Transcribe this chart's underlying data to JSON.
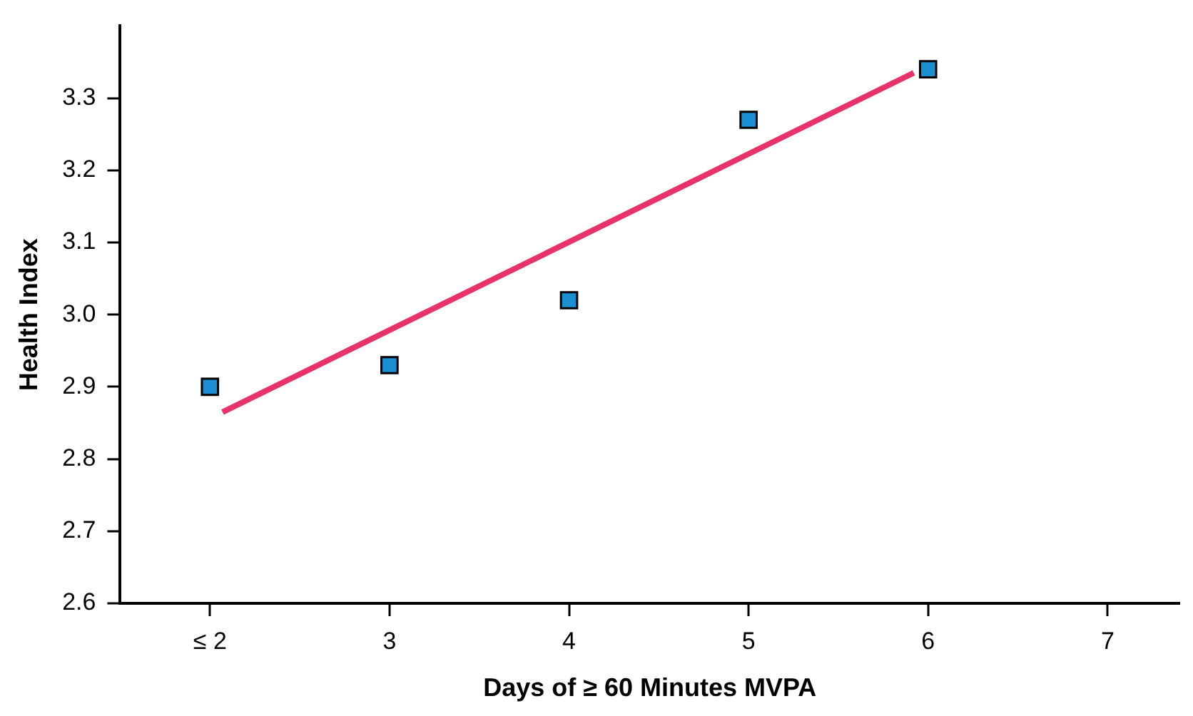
{
  "chart_data": {
    "type": "scatter",
    "xlabel": "Days of ≥ 60 Minutes MVPA",
    "ylabel": "Health Index",
    "xlim": [
      1.5,
      7.4
    ],
    "xticks": [
      {
        "value": 2,
        "label": "≤ 2"
      },
      3,
      4,
      5,
      6,
      7
    ],
    "ylim": [
      2.6,
      3.4
    ],
    "yticks": [
      2.6,
      2.7,
      2.8,
      2.9,
      {
        "value": 3,
        "label": "3.0"
      },
      3.1,
      3.2,
      3.3
    ],
    "series": [
      {
        "type": "scatter",
        "marker": "square",
        "color": "#1b8fd2",
        "x": [
          2,
          3,
          4,
          5,
          6
        ],
        "values": [
          2.9,
          2.93,
          3.02,
          3.27,
          3.34
        ]
      },
      {
        "type": "line",
        "color": "#e8336a",
        "x": [
          2.07,
          5.92
        ],
        "values": [
          2.865,
          3.335
        ]
      }
    ]
  }
}
